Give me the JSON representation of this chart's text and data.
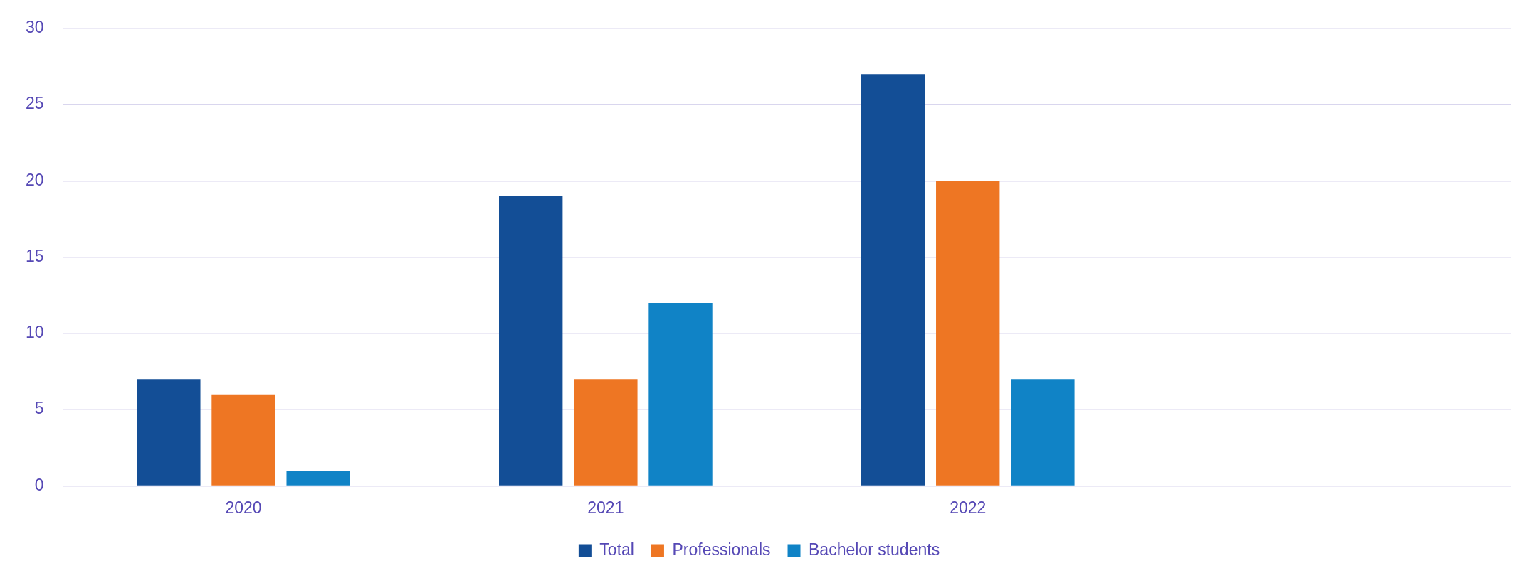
{
  "chart_data": {
    "type": "bar",
    "categories": [
      "2020",
      "2021",
      "2022",
      null
    ],
    "series": [
      {
        "name": "Total",
        "color": "#134e96",
        "values": [
          7,
          19,
          27,
          null
        ]
      },
      {
        "name": "Professionals",
        "color": "#ee7623",
        "values": [
          6,
          7,
          20,
          null
        ]
      },
      {
        "name": "Bachelor students",
        "color": "#1083c6",
        "values": [
          1,
          12,
          7,
          null
        ]
      }
    ],
    "ylim": [
      0,
      30
    ],
    "yticks": [
      0,
      5,
      10,
      15,
      20,
      25,
      30
    ],
    "grid": "y",
    "legend": "bottom"
  }
}
